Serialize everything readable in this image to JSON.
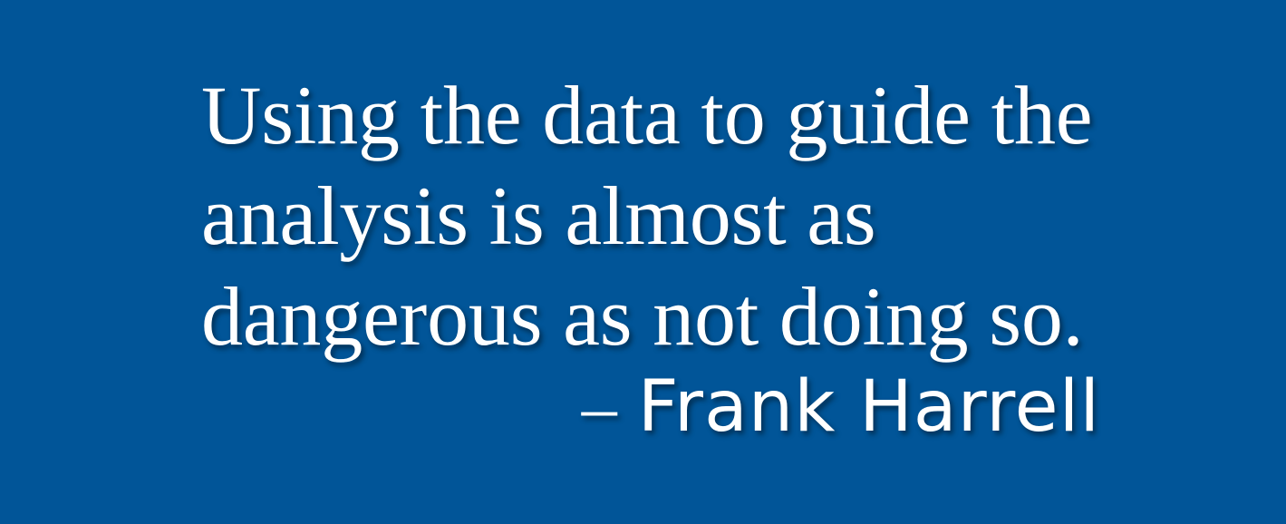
{
  "background_color": "#015598",
  "text_color": "#ffffff",
  "quote": {
    "lines": [
      "Using the data to guide the",
      "analysis is almost as",
      "dangerous as not doing so."
    ],
    "dash": "–",
    "author": "Frank Harrell"
  }
}
